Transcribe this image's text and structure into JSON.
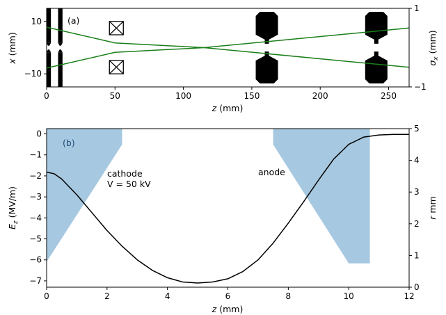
{
  "chart_data": [
    {
      "panel_label": "(a)",
      "type": "line",
      "xlabel": "z (mm)",
      "ylabel": "x (mm)",
      "ylabel_right": "σ_x (mm)",
      "xlim": [
        0,
        265
      ],
      "ylim": [
        -15,
        15
      ],
      "ylim_right": [
        -1,
        1
      ],
      "xticks": [
        0,
        50,
        100,
        150,
        200,
        250
      ],
      "yticks": [
        10,
        -10
      ],
      "yticks_right": [
        1,
        -1
      ],
      "series": [
        {
          "color": "#1a7f1a",
          "x": [
            0,
            50,
            115,
            265
          ],
          "y": [
            0.52,
            0.12,
            0.0,
            -0.5
          ]
        },
        {
          "color": "#1a7f1a",
          "x": [
            0,
            50,
            115,
            265
          ],
          "y": [
            -0.52,
            -0.12,
            0.0,
            0.5
          ]
        }
      ],
      "elements": [
        {
          "kind": "plate",
          "z": 1.5,
          "aperture": 1.0
        },
        {
          "kind": "plate",
          "z": 10,
          "aperture": 1.0
        },
        {
          "kind": "coil",
          "z": 51,
          "box_x": [
            4.9,
            10.0
          ]
        },
        {
          "kind": "coil",
          "z": 51,
          "box_x": [
            -10.0,
            -4.9
          ]
        },
        {
          "kind": "lens",
          "z": 161,
          "bore": 1.5
        },
        {
          "kind": "lens",
          "z": 241,
          "bore": 1.5
        }
      ],
      "line_color": "#1a7f1a",
      "element_color": "#000000"
    },
    {
      "panel_label": "(b)",
      "type": "line",
      "xlabel": "z (mm)",
      "ylabel": "E_z (MV/m)",
      "ylabel_right": "r mm",
      "xlim": [
        0,
        12
      ],
      "ylim": [
        -7.3,
        0.25
      ],
      "ylim_right": [
        0,
        5
      ],
      "xticks": [
        0,
        2,
        4,
        6,
        8,
        10,
        12
      ],
      "yticks": [
        0,
        -1,
        -2,
        -3,
        -4,
        -5,
        -6,
        -7
      ],
      "yticks_right": [
        0,
        1,
        2,
        3,
        4,
        5
      ],
      "series": [
        {
          "color": "#000000",
          "x": [
            0,
            0.25,
            0.5,
            1,
            1.5,
            2,
            2.5,
            3,
            3.5,
            4,
            4.5,
            5,
            5.5,
            6,
            6.5,
            7,
            7.5,
            8,
            8.5,
            9,
            9.5,
            10,
            10.5,
            11,
            11.5,
            12
          ],
          "y": [
            -1.82,
            -1.9,
            -2.15,
            -2.9,
            -3.75,
            -4.6,
            -5.35,
            -6.0,
            -6.5,
            -6.85,
            -7.05,
            -7.1,
            -7.05,
            -6.9,
            -6.55,
            -6.0,
            -5.2,
            -4.25,
            -3.25,
            -2.2,
            -1.2,
            -0.5,
            -0.15,
            -0.05,
            -0.02,
            -0.02
          ]
        }
      ],
      "shapes_right_axis": [
        {
          "name": "cathode",
          "points": [
            [
              0,
              0.8
            ],
            [
              0,
              5
            ],
            [
              2.5,
              5
            ],
            [
              2.5,
              4.5
            ]
          ]
        },
        {
          "name": "anode",
          "points": [
            [
              7.5,
              4.5
            ],
            [
              7.5,
              5
            ],
            [
              10.7,
              5
            ],
            [
              10.7,
              0.75
            ],
            [
              10,
              0.75
            ]
          ]
        }
      ],
      "shape_color": "#a6c8e0",
      "annotations": {
        "cathode": "cathode",
        "cathode_voltage": "V = 50 kV",
        "anode": "anode"
      }
    }
  ]
}
